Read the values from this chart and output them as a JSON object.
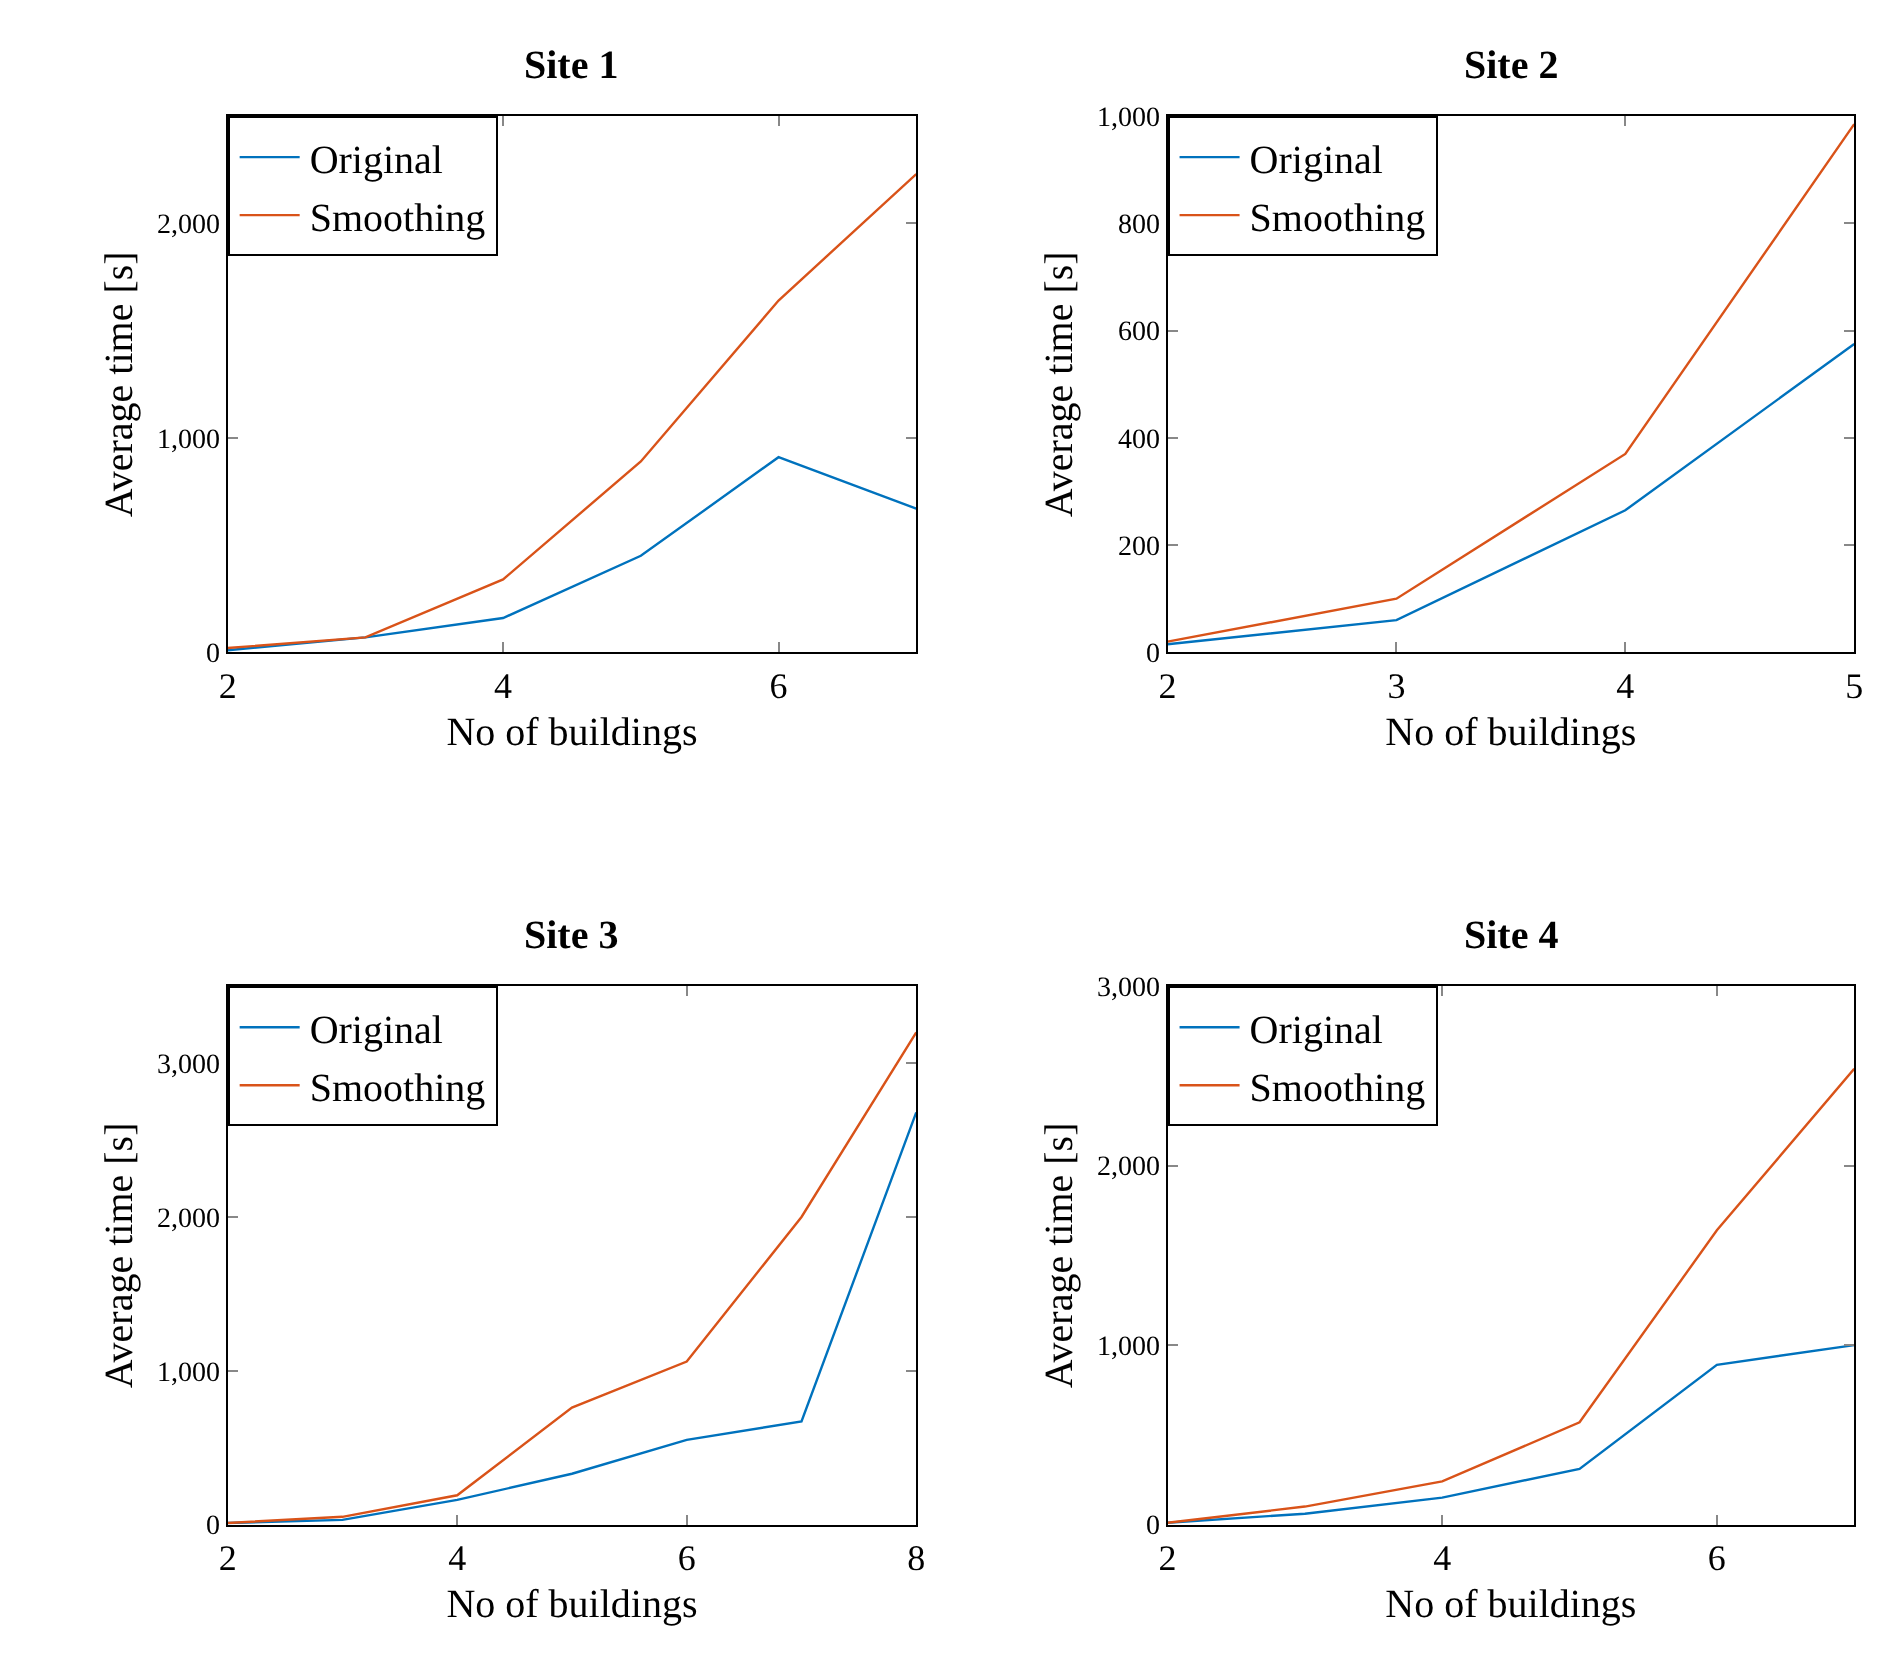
{
  "chart_data": [
    {
      "type": "line",
      "title": "Site 1",
      "xlabel": "No of buildings",
      "ylabel": "Average time [s]",
      "legend": "top left",
      "x": [
        2,
        3,
        4,
        5,
        6,
        7
      ],
      "xlim": [
        2,
        7
      ],
      "xticks": [
        2,
        4,
        6
      ],
      "ylim": [
        0,
        2500
      ],
      "yticks": [
        0,
        {
          "value": 1000,
          "label": "1,000"
        },
        {
          "value": 2000,
          "label": "2,000"
        }
      ],
      "series": [
        {
          "name": "Original",
          "color": "#0072bd",
          "values": [
            10,
            70,
            160,
            450,
            910,
            670
          ]
        },
        {
          "name": "Smoothing",
          "color": "#d95319",
          "values": [
            20,
            70,
            340,
            890,
            1640,
            2230
          ]
        }
      ]
    },
    {
      "type": "line",
      "title": "Site 2",
      "xlabel": "No of buildings",
      "ylabel": "Average time [s]",
      "legend": "top left",
      "x": [
        2,
        3,
        4,
        5
      ],
      "xlim": [
        2,
        5
      ],
      "xticks": [
        2,
        3,
        4,
        5
      ],
      "ylim": [
        0,
        1000
      ],
      "yticks": [
        0,
        200,
        400,
        600,
        800,
        {
          "value": 1000,
          "label": "1,000"
        }
      ],
      "series": [
        {
          "name": "Original",
          "color": "#0072bd",
          "values": [
            15,
            60,
            265,
            575
          ]
        },
        {
          "name": "Smoothing",
          "color": "#d95319",
          "values": [
            20,
            100,
            370,
            985
          ]
        }
      ]
    },
    {
      "type": "line",
      "title": "Site 3",
      "xlabel": "No of buildings",
      "ylabel": "Average time [s]",
      "legend": "top left",
      "x": [
        2,
        3,
        4,
        5,
        6,
        7,
        8
      ],
      "xlim": [
        2,
        8
      ],
      "xticks": [
        2,
        4,
        6,
        8
      ],
      "ylim": [
        0,
        3500
      ],
      "yticks": [
        0,
        {
          "value": 1000,
          "label": "1,000"
        },
        {
          "value": 2000,
          "label": "2,000"
        },
        {
          "value": 3000,
          "label": "3,000"
        }
      ],
      "series": [
        {
          "name": "Original",
          "color": "#0072bd",
          "values": [
            10,
            30,
            160,
            330,
            550,
            670,
            2680
          ]
        },
        {
          "name": "Smoothing",
          "color": "#d95319",
          "values": [
            10,
            50,
            190,
            760,
            1060,
            2000,
            3200
          ]
        }
      ]
    },
    {
      "type": "line",
      "title": "Site 4",
      "xlabel": "No of buildings",
      "ylabel": "Average time [s]",
      "legend": "top left",
      "x": [
        2,
        3,
        4,
        5,
        6,
        7
      ],
      "xlim": [
        2,
        7
      ],
      "xticks": [
        2,
        4,
        6
      ],
      "ylim": [
        0,
        3000
      ],
      "yticks": [
        0,
        {
          "value": 1000,
          "label": "1,000"
        },
        {
          "value": 2000,
          "label": "2,000"
        },
        {
          "value": 3000,
          "label": "3,000"
        }
      ],
      "series": [
        {
          "name": "Original",
          "color": "#0072bd",
          "values": [
            10,
            60,
            150,
            310,
            890,
            1000
          ]
        },
        {
          "name": "Smoothing",
          "color": "#d95319",
          "values": [
            10,
            100,
            240,
            570,
            1640,
            2540
          ]
        }
      ]
    }
  ]
}
